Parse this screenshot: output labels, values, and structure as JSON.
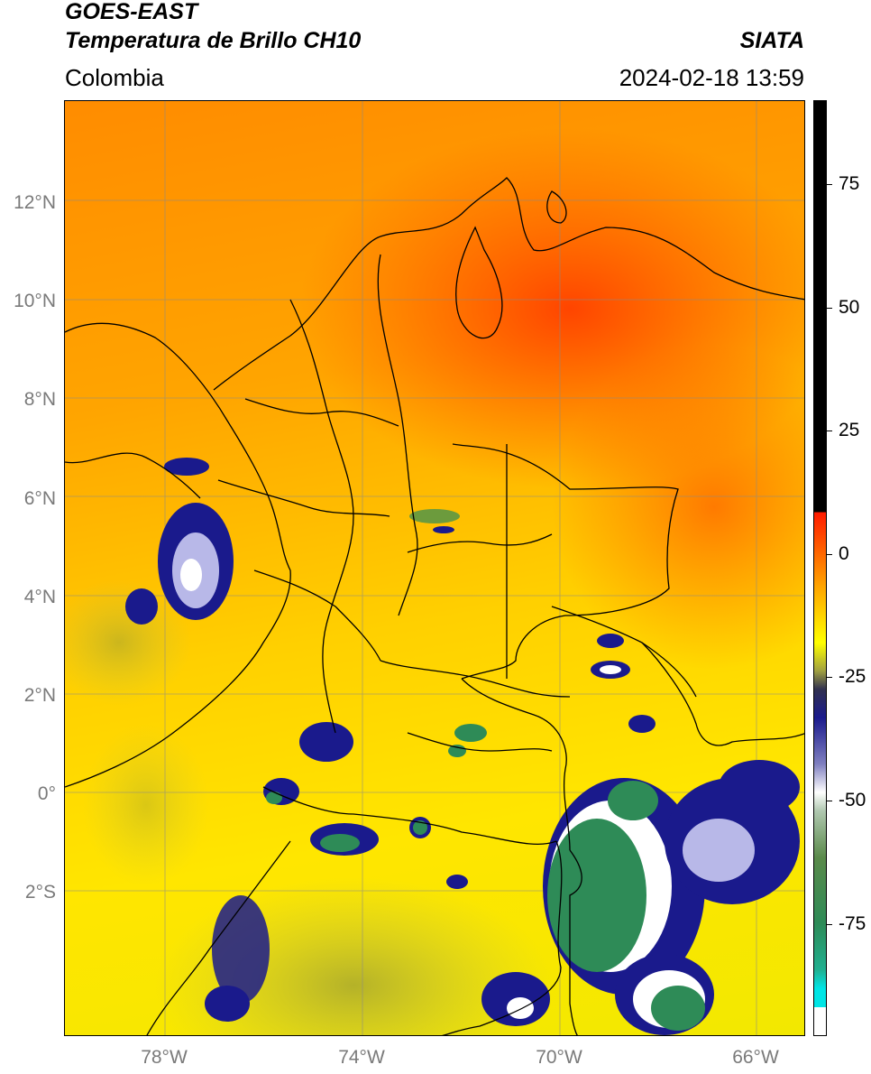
{
  "header": {
    "satellite": "GOES-EAST",
    "product": "Temperatura de Brillo CH10",
    "organization": "SIATA",
    "region": "Colombia",
    "datetime": "2024-02-18 13:59"
  },
  "map": {
    "lat_labels": [
      "12°N",
      "10°N",
      "8°N",
      "6°N",
      "4°N",
      "2°N",
      "0°",
      "2°S"
    ],
    "lon_labels": [
      "78°W",
      "74°W",
      "70°W",
      "66°W"
    ],
    "grid": true
  },
  "colorbar": {
    "labels": [
      "75",
      "50",
      "25",
      "0",
      "-25",
      "-50",
      "-75"
    ],
    "range": [
      -95,
      90
    ],
    "colors": {
      "warm_max": "#000000",
      "warm": "#ff1a00",
      "mid": "#ffa500",
      "cool": "#ffff00",
      "cold": "#1a1a8c",
      "colder": "#ffffff",
      "coldest": "#2e8b57",
      "extreme": "#00e5e5"
    }
  }
}
